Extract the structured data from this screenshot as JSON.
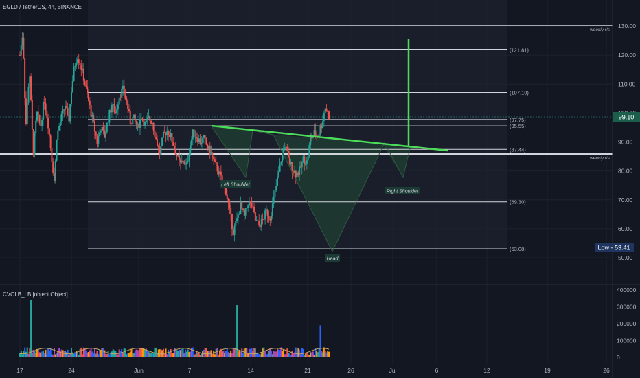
{
  "header": {
    "symbol_title": "EGLD / TetherUS, 4h, BINANCE"
  },
  "indicator": {
    "label": "CVOLB_LB [object Object]"
  },
  "colors": {
    "background": "#131722",
    "grid": "#1e222d",
    "text": "#b2b5be",
    "up": "#26a69a",
    "down": "#ef5350",
    "level_line": "#d1d4dc",
    "neckline": "#4cdc5a",
    "pattern_fill": "#1e3b30",
    "price_badge": "#1b5e4b",
    "low_badge": "#1f3560"
  },
  "chart_data": [
    {
      "type": "candlestick",
      "title": "EGLD / TetherUS, 4h, BINANCE",
      "x_ticks": [
        "17",
        "24",
        "Jun",
        "7",
        "14",
        "21",
        "26",
        "Jul",
        "6",
        "12",
        "19",
        "26"
      ],
      "y_ticks": [
        "130.00",
        "120.00",
        "110.00",
        "100.00",
        "90.00",
        "80.00",
        "70.00",
        "60.00",
        "50.00"
      ],
      "ylim": [
        47,
        137
      ],
      "current_price": {
        "label": "99.10",
        "value": 99.1
      },
      "low_badge": {
        "label": "Low - 53.41",
        "value": 53.41
      },
      "levels": [
        {
          "label": "(121.81)",
          "value": 121.81
        },
        {
          "label": "(107.10)",
          "value": 107.1
        },
        {
          "label": "(97.75)",
          "value": 97.75
        },
        {
          "label": "(95.55)",
          "value": 95.55
        },
        {
          "label": "(87.44)",
          "value": 87.44
        },
        {
          "label": "(69.30)",
          "value": 69.3
        },
        {
          "label": "(53.08)",
          "value": 53.08
        }
      ],
      "weekly_levels": [
        {
          "label": "weekly r/s",
          "value": 130.2
        },
        {
          "label": "weekly r/s",
          "value": 85.8
        }
      ],
      "annotations": [
        "Left Shoulder",
        "Head",
        "Right Shoulder"
      ],
      "price_path": [
        [
          17.0,
          120
        ],
        [
          17.4,
          128
        ],
        [
          17.8,
          95
        ],
        [
          18.3,
          115
        ],
        [
          18.8,
          86
        ],
        [
          19.3,
          100
        ],
        [
          19.8,
          95
        ],
        [
          20.3,
          105
        ],
        [
          20.8,
          97
        ],
        [
          21.3,
          85
        ],
        [
          21.7,
          76
        ],
        [
          22.0,
          92
        ],
        [
          22.6,
          98
        ],
        [
          23.2,
          103
        ],
        [
          23.6,
          96
        ],
        [
          24.0,
          108
        ],
        [
          24.4,
          116
        ],
        [
          24.8,
          120
        ],
        [
          25.2,
          117
        ],
        [
          25.6,
          113
        ],
        [
          26.0,
          108
        ],
        [
          26.5,
          102
        ],
        [
          27.0,
          96
        ],
        [
          27.5,
          90
        ],
        [
          28.0,
          95
        ],
        [
          28.5,
          92
        ],
        [
          29.0,
          98
        ],
        [
          29.5,
          103
        ],
        [
          30.0,
          100
        ],
        [
          30.5,
          106
        ],
        [
          31.0,
          108
        ],
        [
          31.5,
          104
        ],
        [
          32.0,
          97
        ],
        [
          32.5,
          98
        ],
        [
          33.0,
          95
        ],
        [
          33.5,
          99
        ],
        [
          34.0,
          96
        ],
        [
          34.5,
          98
        ],
        [
          35.0,
          97
        ],
        [
          35.5,
          91
        ],
        [
          36.0,
          86
        ],
        [
          36.5,
          92
        ],
        [
          37.0,
          94
        ],
        [
          37.5,
          92
        ],
        [
          38.0,
          88
        ],
        [
          38.5,
          84
        ],
        [
          38.8,
          82
        ],
        [
          39.2,
          84
        ],
        [
          39.6,
          81
        ],
        [
          40.0,
          87
        ],
        [
          40.5,
          93
        ],
        [
          41.0,
          92
        ],
        [
          41.5,
          90
        ],
        [
          42.0,
          91
        ],
        [
          42.5,
          88
        ],
        [
          43.0,
          86
        ],
        [
          43.5,
          82
        ],
        [
          44.0,
          80
        ],
        [
          44.5,
          76
        ],
        [
          45.0,
          73
        ],
        [
          45.5,
          66
        ],
        [
          46.0,
          59
        ],
        [
          46.5,
          63
        ],
        [
          47.0,
          68
        ],
        [
          47.5,
          64
        ],
        [
          48.0,
          69
        ],
        [
          48.5,
          68
        ],
        [
          49.0,
          63
        ],
        [
          49.5,
          61
        ],
        [
          50.0,
          63
        ],
        [
          50.5,
          66
        ],
        [
          51.0,
          64
        ],
        [
          51.5,
          70
        ],
        [
          52.0,
          77
        ],
        [
          52.5,
          84
        ],
        [
          53.0,
          89
        ],
        [
          53.5,
          84
        ],
        [
          54.0,
          81
        ],
        [
          54.5,
          79
        ],
        [
          55.0,
          80
        ],
        [
          55.5,
          84
        ],
        [
          56.0,
          83
        ],
        [
          56.5,
          91
        ],
        [
          57.0,
          93
        ],
        [
          57.5,
          92
        ],
        [
          58.0,
          96
        ],
        [
          58.5,
          102
        ],
        [
          59.0,
          99
        ]
      ],
      "volume_axis": {
        "ticks": [
          "400000",
          "300000",
          "200000",
          "100000",
          "0"
        ],
        "ylim": [
          0,
          430000
        ]
      },
      "volume_spikes": [
        {
          "x": 18.5,
          "value": 340000
        },
        {
          "x": 46.5,
          "value": 310000
        },
        {
          "x": 57.9,
          "value": 190000
        }
      ]
    }
  ]
}
